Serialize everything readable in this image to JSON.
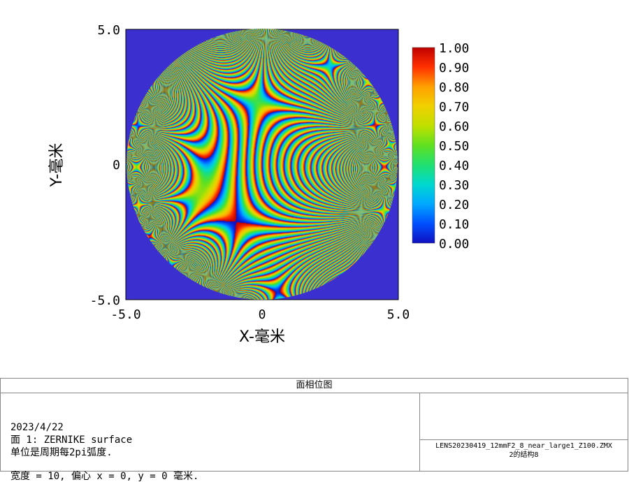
{
  "chart_data": {
    "type": "heatmap",
    "title": "面相位图",
    "xlabel": "X-毫米",
    "ylabel": "Y-毫米",
    "xlim": [
      -5.0,
      5.0
    ],
    "ylim": [
      -5.0,
      5.0
    ],
    "x_ticks": [
      "-5.0",
      "0",
      "5.0"
    ],
    "y_ticks": [
      "5.0",
      "0",
      "-5.0"
    ],
    "colorbar": {
      "range": [
        0.0,
        1.0
      ],
      "ticks": [
        "1.00",
        "0.90",
        "0.80",
        "0.70",
        "0.60",
        "0.50",
        "0.40",
        "0.30",
        "0.20",
        "0.10",
        "0.00"
      ],
      "colormap": [
        "#0000c8",
        "#00a0ff",
        "#00e0a0",
        "#40e040",
        "#c0e000",
        "#ffc000",
        "#ff6000",
        "#e00000",
        "#c00000"
      ]
    },
    "pupil": "circular aperture, diameter 10 mm, wrapped phase 0–1 waves",
    "background_color": "#3b2fd0"
  },
  "info": {
    "date": "2023/4/22",
    "surface": "面 1: ZERNIKE surface",
    "units": "单位是周期每2pi弧度.",
    "width_line": "宽度 = 10, 偏心 x = 0, y = 0 毫米.",
    "filename": "LENS20230419_12mmF2_8_near_large1_Z100.ZMX",
    "config": "2的结构8"
  }
}
